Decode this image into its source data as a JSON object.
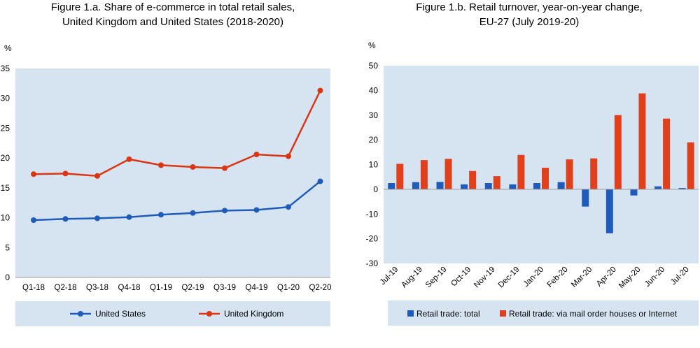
{
  "chart_data": [
    {
      "type": "line",
      "title": "Figure 1.a. Share of e-commerce in total retail sales,",
      "subtitle": "United Kingdom and United States  (2018-2020)",
      "ylabel": "%",
      "xlabel": "",
      "ylim": [
        0,
        35
      ],
      "yticks": [
        0,
        5,
        10,
        15,
        20,
        25,
        30,
        35
      ],
      "grid": false,
      "legend_position": "bottom",
      "categories": [
        "Q1-18",
        "Q2-18",
        "Q3-18",
        "Q4-18",
        "Q1-19",
        "Q2-19",
        "Q3-19",
        "Q4-19",
        "Q1-20",
        "Q2-20"
      ],
      "series": [
        {
          "name": "United States",
          "color": "#1f5bb8",
          "values": [
            9.6,
            9.8,
            9.9,
            10.1,
            10.5,
            10.8,
            11.2,
            11.3,
            11.8,
            16.1
          ]
        },
        {
          "name": "United Kingdom",
          "color": "#d93614",
          "values": [
            17.3,
            17.4,
            17.0,
            19.8,
            18.8,
            18.5,
            18.3,
            20.6,
            20.3,
            31.3
          ]
        }
      ]
    },
    {
      "type": "bar",
      "title": "Figure 1.b. Retail turnover, year-on-year change,",
      "subtitle": "EU-27 (July 2019-20)",
      "ylabel": "%",
      "xlabel": "",
      "ylim": [
        -30,
        50
      ],
      "yticks": [
        -30,
        -20,
        -10,
        0,
        10,
        20,
        30,
        40,
        50
      ],
      "grid": false,
      "legend_position": "bottom",
      "categories": [
        "Jul-19",
        "Aug-19",
        "Sep-19",
        "Oct-19",
        "Nov-19",
        "Dec-19",
        "Jan-20",
        "Feb-20",
        "Mar-20",
        "Apr-20",
        "May-20",
        "Jun-20",
        "Jul-20"
      ],
      "series": [
        {
          "name": "Retail trade: total",
          "color": "#1f5bb8",
          "values": [
            2.5,
            2.9,
            3.0,
            2.0,
            2.5,
            2.0,
            2.5,
            2.9,
            -7.0,
            -17.8,
            -2.5,
            1.2,
            0.5
          ]
        },
        {
          "name": "Retail trade: via mail order houses or Internet",
          "color": "#e0401c",
          "values": [
            10.3,
            11.8,
            12.3,
            7.4,
            5.3,
            13.9,
            8.7,
            12.1,
            12.5,
            30.0,
            38.8,
            28.6,
            19.0
          ]
        }
      ]
    }
  ],
  "style": {
    "plot_bg": "#d6e4f2",
    "axis_color": "#999999"
  }
}
